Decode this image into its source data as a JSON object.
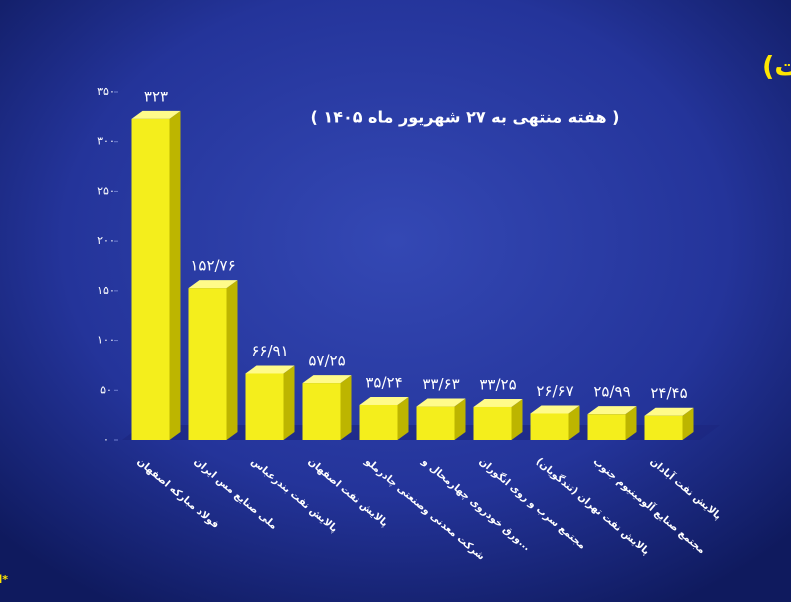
{
  "chart_data": {
    "type": "bar",
    "title": "برترین های هفته در بورس کالا (براساس ارزش معاملات)",
    "subtitle": "( هفته منتهی به ۲۷ شهریور ماه ۱۴۰۵ )",
    "footnote": "*اعداد برحسب هزار میلیارد ریال است",
    "categories": [
      "فولاد مبارکه اصفهان",
      "ملی صنایع مس ایران",
      "پالایش نفت بندرعباس",
      "پالایش نفت اصفهان",
      "شرکت معدنی وصنعتی چادرملو",
      "ورق خودروی چهارمحال و...",
      "مجتمع سرب و روی انگوران",
      "پالایش نفت تهران (تندگویان)",
      "مجتمع صنایع آلومینیوم جنوب",
      "پالایش نفت آبادان"
    ],
    "values": [
      323,
      152.76,
      66.91,
      57.25,
      35.24,
      33.63,
      33.25,
      26.67,
      25.99,
      24.45
    ],
    "value_labels": [
      "۳۲۳",
      "۱۵۲/۷۶",
      "۶۶/۹۱",
      "۵۷/۲۵",
      "۳۵/۲۴",
      "۳۳/۶۳",
      "۳۳/۲۵",
      "۲۶/۶۷",
      "۲۵/۹۹",
      "۲۴/۴۵"
    ],
    "color": "#f4ee1c",
    "ylim": [
      0,
      350
    ],
    "yticks": [
      {
        "value": 0,
        "label": "۰"
      },
      {
        "value": 50,
        "label": "۵۰"
      },
      {
        "value": 100,
        "label": "۱۰۰"
      },
      {
        "value": 150,
        "label": "۱۵۰"
      },
      {
        "value": 200,
        "label": "۲۰۰"
      },
      {
        "value": 250,
        "label": "۲۵۰"
      },
      {
        "value": 300,
        "label": "۳۰۰"
      },
      {
        "value": 350,
        "label": "۳۵۰"
      }
    ]
  }
}
